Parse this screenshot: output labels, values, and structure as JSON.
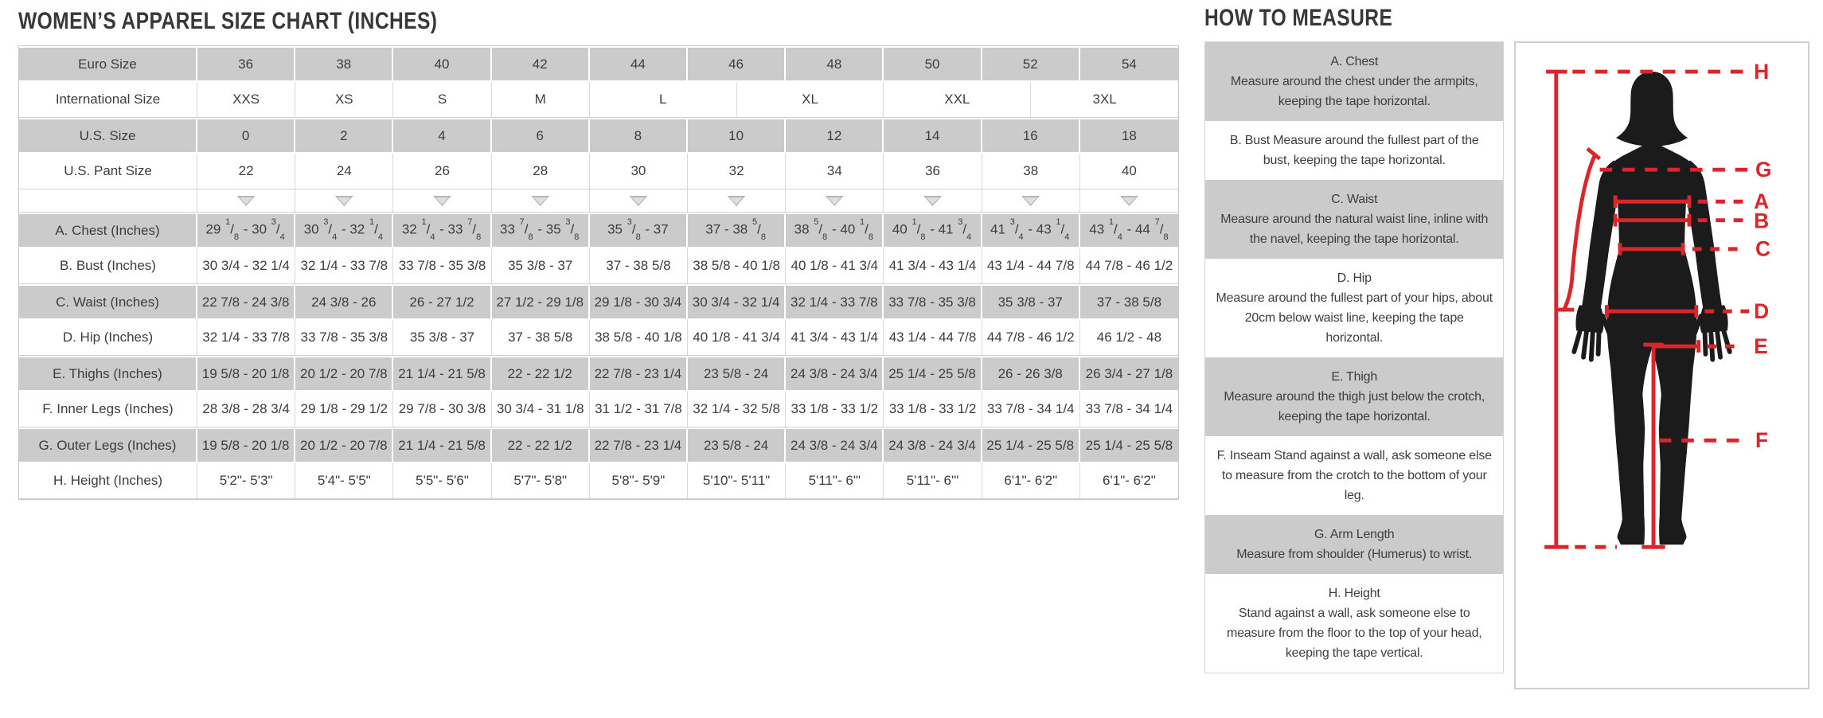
{
  "colors": {
    "accent_red": "#d9262b",
    "row_gray": "#cbcbcb",
    "text_dark": "#3d3d3d",
    "border_gray": "#cfcfcf",
    "silhouette_black": "#1b1b1b"
  },
  "size_chart": {
    "title": "WOMEN’S APPAREL SIZE CHART (INCHES)",
    "rows": [
      {
        "label": "Euro Size",
        "shaded": true,
        "cells": [
          "36",
          "38",
          "40",
          "42",
          "44",
          "46",
          "48",
          "50",
          "52",
          "54"
        ]
      },
      {
        "label": "International Size",
        "shaded": false,
        "spans": [
          2,
          2,
          2,
          2,
          3,
          3,
          3,
          3
        ],
        "cells": [
          "XXS",
          "XS",
          "S",
          "M",
          "L",
          "XL",
          "XXL",
          "3XL"
        ]
      },
      {
        "label": "U.S. Size",
        "shaded": true,
        "cells": [
          "0",
          "2",
          "4",
          "6",
          "8",
          "10",
          "12",
          "14",
          "16",
          "18"
        ]
      },
      {
        "label": "U.S. Pant Size",
        "shaded": false,
        "cells": [
          "22",
          "24",
          "26",
          "28",
          "30",
          "32",
          "34",
          "36",
          "38",
          "40"
        ]
      },
      {
        "label": "",
        "shaded": false,
        "type": "arrows"
      },
      {
        "label": "A. Chest (Inches)",
        "shaded": true,
        "fractions": true,
        "cells": [
          "29 1/8 - 30 3/4",
          "30 3/4 - 32 1/4",
          "32 1/4 - 33 7/8",
          "33 7/8 - 35 3/8",
          "35 3/8 - 37",
          "37 - 38 5/8",
          "38 5/8 - 40 1/8",
          "40 1/8 - 41 3/4",
          "41 3/4 - 43 1/4",
          "43 1/4 - 44 7/8"
        ]
      },
      {
        "label": "B. Bust (Inches)",
        "shaded": false,
        "cells": [
          "30 3/4 - 32 1/4",
          "32 1/4 - 33 7/8",
          "33 7/8 - 35 3/8",
          "35 3/8 - 37",
          "37 - 38 5/8",
          "38 5/8 - 40 1/8",
          "40 1/8 - 41 3/4",
          "41 3/4 - 43 1/4",
          "43 1/4 - 44 7/8",
          "44 7/8 - 46 1/2"
        ]
      },
      {
        "label": "C. Waist (Inches)",
        "shaded": true,
        "cells": [
          "22 7/8 - 24 3/8",
          "24 3/8 - 26",
          "26 - 27 1/2",
          "27 1/2 - 29 1/8",
          "29 1/8 - 30 3/4",
          "30 3/4 - 32 1/4",
          "32 1/4 - 33 7/8",
          "33 7/8 - 35 3/8",
          "35 3/8 - 37",
          "37 - 38 5/8"
        ]
      },
      {
        "label": "D. Hip (Inches)",
        "shaded": false,
        "cells": [
          "32 1/4 - 33 7/8",
          "33 7/8 - 35 3/8",
          "35 3/8 - 37",
          "37 - 38 5/8",
          "38 5/8 - 40 1/8",
          "40 1/8 - 41 3/4",
          "41 3/4 - 43 1/4",
          "43 1/4 - 44 7/8",
          "44 7/8 - 46 1/2",
          "46 1/2 - 48"
        ]
      },
      {
        "label": "E. Thighs (Inches)",
        "shaded": true,
        "cells": [
          "19 5/8 - 20 1/8",
          "20 1/2 - 20 7/8",
          "21 1/4 - 21 5/8",
          "22 - 22 1/2",
          "22 7/8 - 23 1/4",
          "23 5/8 - 24",
          "24 3/8 - 24 3/4",
          "25 1/4 - 25 5/8",
          "26 - 26 3/8",
          "26 3/4 - 27 1/8"
        ]
      },
      {
        "label": "F. Inner Legs (Inches)",
        "shaded": false,
        "cells": [
          "28 3/8 - 28 3/4",
          "29 1/8 - 29 1/2",
          "29 7/8 - 30 3/8",
          "30 3/4 - 31 1/8",
          "31 1/2 - 31 7/8",
          "32 1/4 - 32 5/8",
          "33 1/8 - 33 1/2",
          "33 1/8 - 33 1/2",
          "33 7/8 - 34 1/4",
          "33 7/8 - 34 1/4"
        ]
      },
      {
        "label": "G. Outer Legs (Inches)",
        "shaded": true,
        "cells": [
          "19 5/8 - 20 1/8",
          "20 1/2 - 20 7/8",
          "21 1/4 - 21 5/8",
          "22 - 22 1/2",
          "22 7/8 - 23 1/4",
          "23 5/8 - 24",
          "24 3/8 - 24 3/4",
          "24 3/8 - 24 3/4",
          "25 1/4 - 25 5/8",
          "25 1/4 - 25 5/8"
        ]
      },
      {
        "label": "H. Height (Inches)",
        "shaded": false,
        "cells": [
          "5'2\"- 5'3\"",
          "5'4\"- 5'5\"",
          "5'5\"- 5'6\"",
          "5'7\"- 5'8\"",
          "5'8\"- 5'9\"",
          "5'10\"- 5'11\"",
          "5'11\"- 6'\"",
          "5'11\"- 6'\"",
          "6'1\"- 6'2\"",
          "6'1\"- 6'2\""
        ]
      }
    ]
  },
  "how_to_measure": {
    "title": "HOW TO MEASURE",
    "sections": [
      {
        "heading": "A. Chest",
        "inline": false,
        "text": "Measure around the chest under the armpits, keeping the tape horizontal."
      },
      {
        "heading": "B. Bust",
        "inline": true,
        "text": "Measure around the fullest part of the bust, keeping the tape horizontal."
      },
      {
        "heading": "C. Waist",
        "inline": false,
        "text": "Measure around the natural waist line, inline with the navel, keeping the tape horizontal."
      },
      {
        "heading": "D. Hip",
        "inline": false,
        "text": "Measure around the fullest part of your hips, about 20cm below waist line, keeping the tape horizontal."
      },
      {
        "heading": "E. Thigh",
        "inline": false,
        "text": "Measure around the thigh just below the crotch, keeping the tape horizontal."
      },
      {
        "heading": "F. Inseam",
        "inline": true,
        "text": "Stand against a wall, ask someone else to measure from the crotch to the bottom of your leg."
      },
      {
        "heading": "G. Arm Length",
        "inline": false,
        "text": "Measure from shoulder (Humerus) to wrist."
      },
      {
        "heading": "H. Height",
        "inline": false,
        "text": "Stand against a wall, ask someone else to measure from the floor to the top of your head, keeping the tape vertical."
      }
    ],
    "figure_labels": [
      "H",
      "G",
      "A",
      "B",
      "C",
      "D",
      "E",
      "F"
    ]
  }
}
